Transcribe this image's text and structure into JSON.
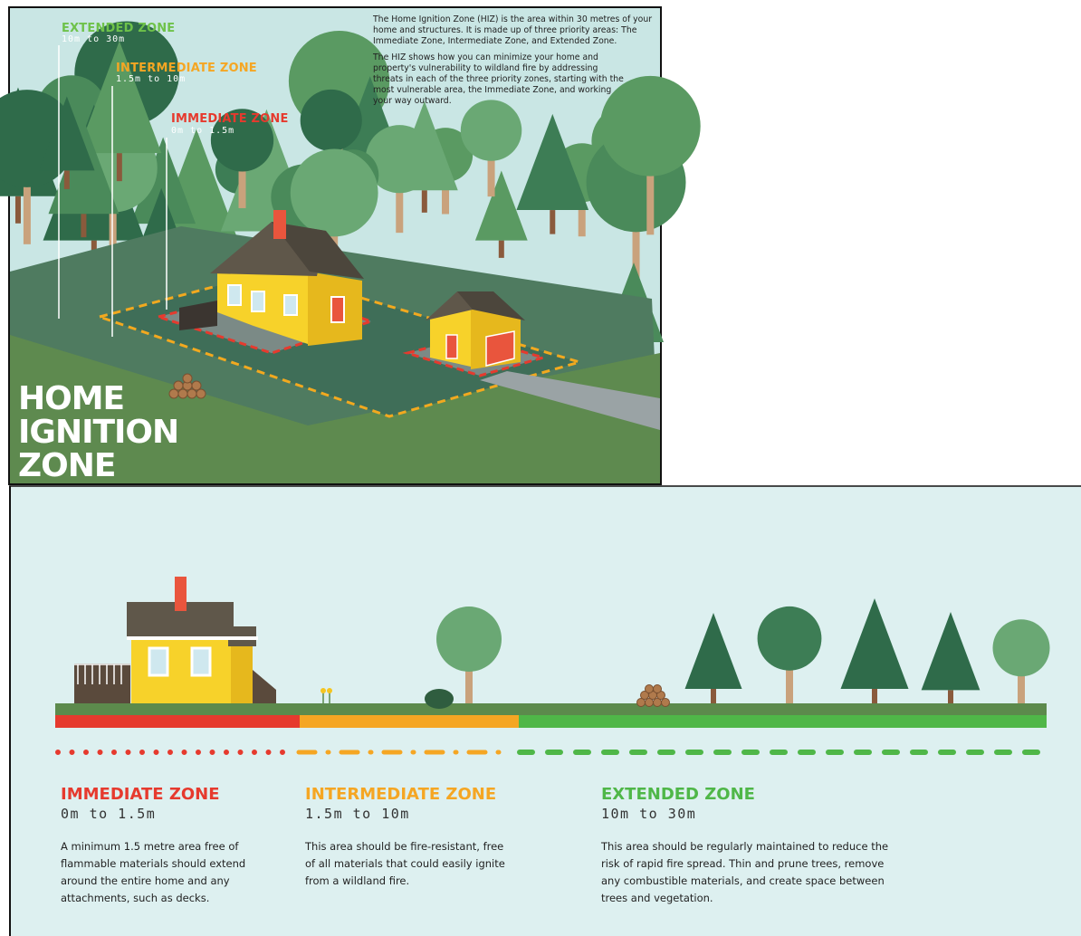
{
  "top": {
    "title_lines": [
      "HOME",
      "IGNITION",
      "ZONE"
    ],
    "zones": [
      {
        "name": "EXTENDED ZONE",
        "range": "10m to 30m"
      },
      {
        "name": "INTERMEDIATE ZONE",
        "range": "1.5m to 10m"
      },
      {
        "name": "IMMEDIATE ZONE",
        "range": "0m to 1.5m"
      }
    ],
    "description": [
      "The Home Ignition Zone (HIZ) is the area within 30 metres of your home and structures. It is made up of three priority areas: The Immediate Zone, Intermediate Zone, and Extended Zone.",
      "The HIZ shows how you can minimize your home and property's vulnerability to wildland fire by addressing threats in each of the three priority zones, starting with the most vulnerable area, the Immediate Zone, and working your way outward."
    ]
  },
  "bottom": {
    "zones": [
      {
        "name": "IMMEDIATE ZONE",
        "range": "0m to 1.5m",
        "text": "A minimum 1.5 metre area free of flammable materials should extend around the entire home and any attachments, such as decks."
      },
      {
        "name": "INTERMEDIATE ZONE",
        "range": "1.5m to 10m",
        "text": "This area should be fire-resistant, free of all materials that could easily ignite from a wildland fire."
      },
      {
        "name": "EXTENDED ZONE",
        "range": "10m to 30m",
        "text": "This area should be regularly maintained to reduce the risk of rapid fire spread. Thin and prune trees, remove any combustible materials, and create space between trees and vegetation."
      }
    ]
  }
}
